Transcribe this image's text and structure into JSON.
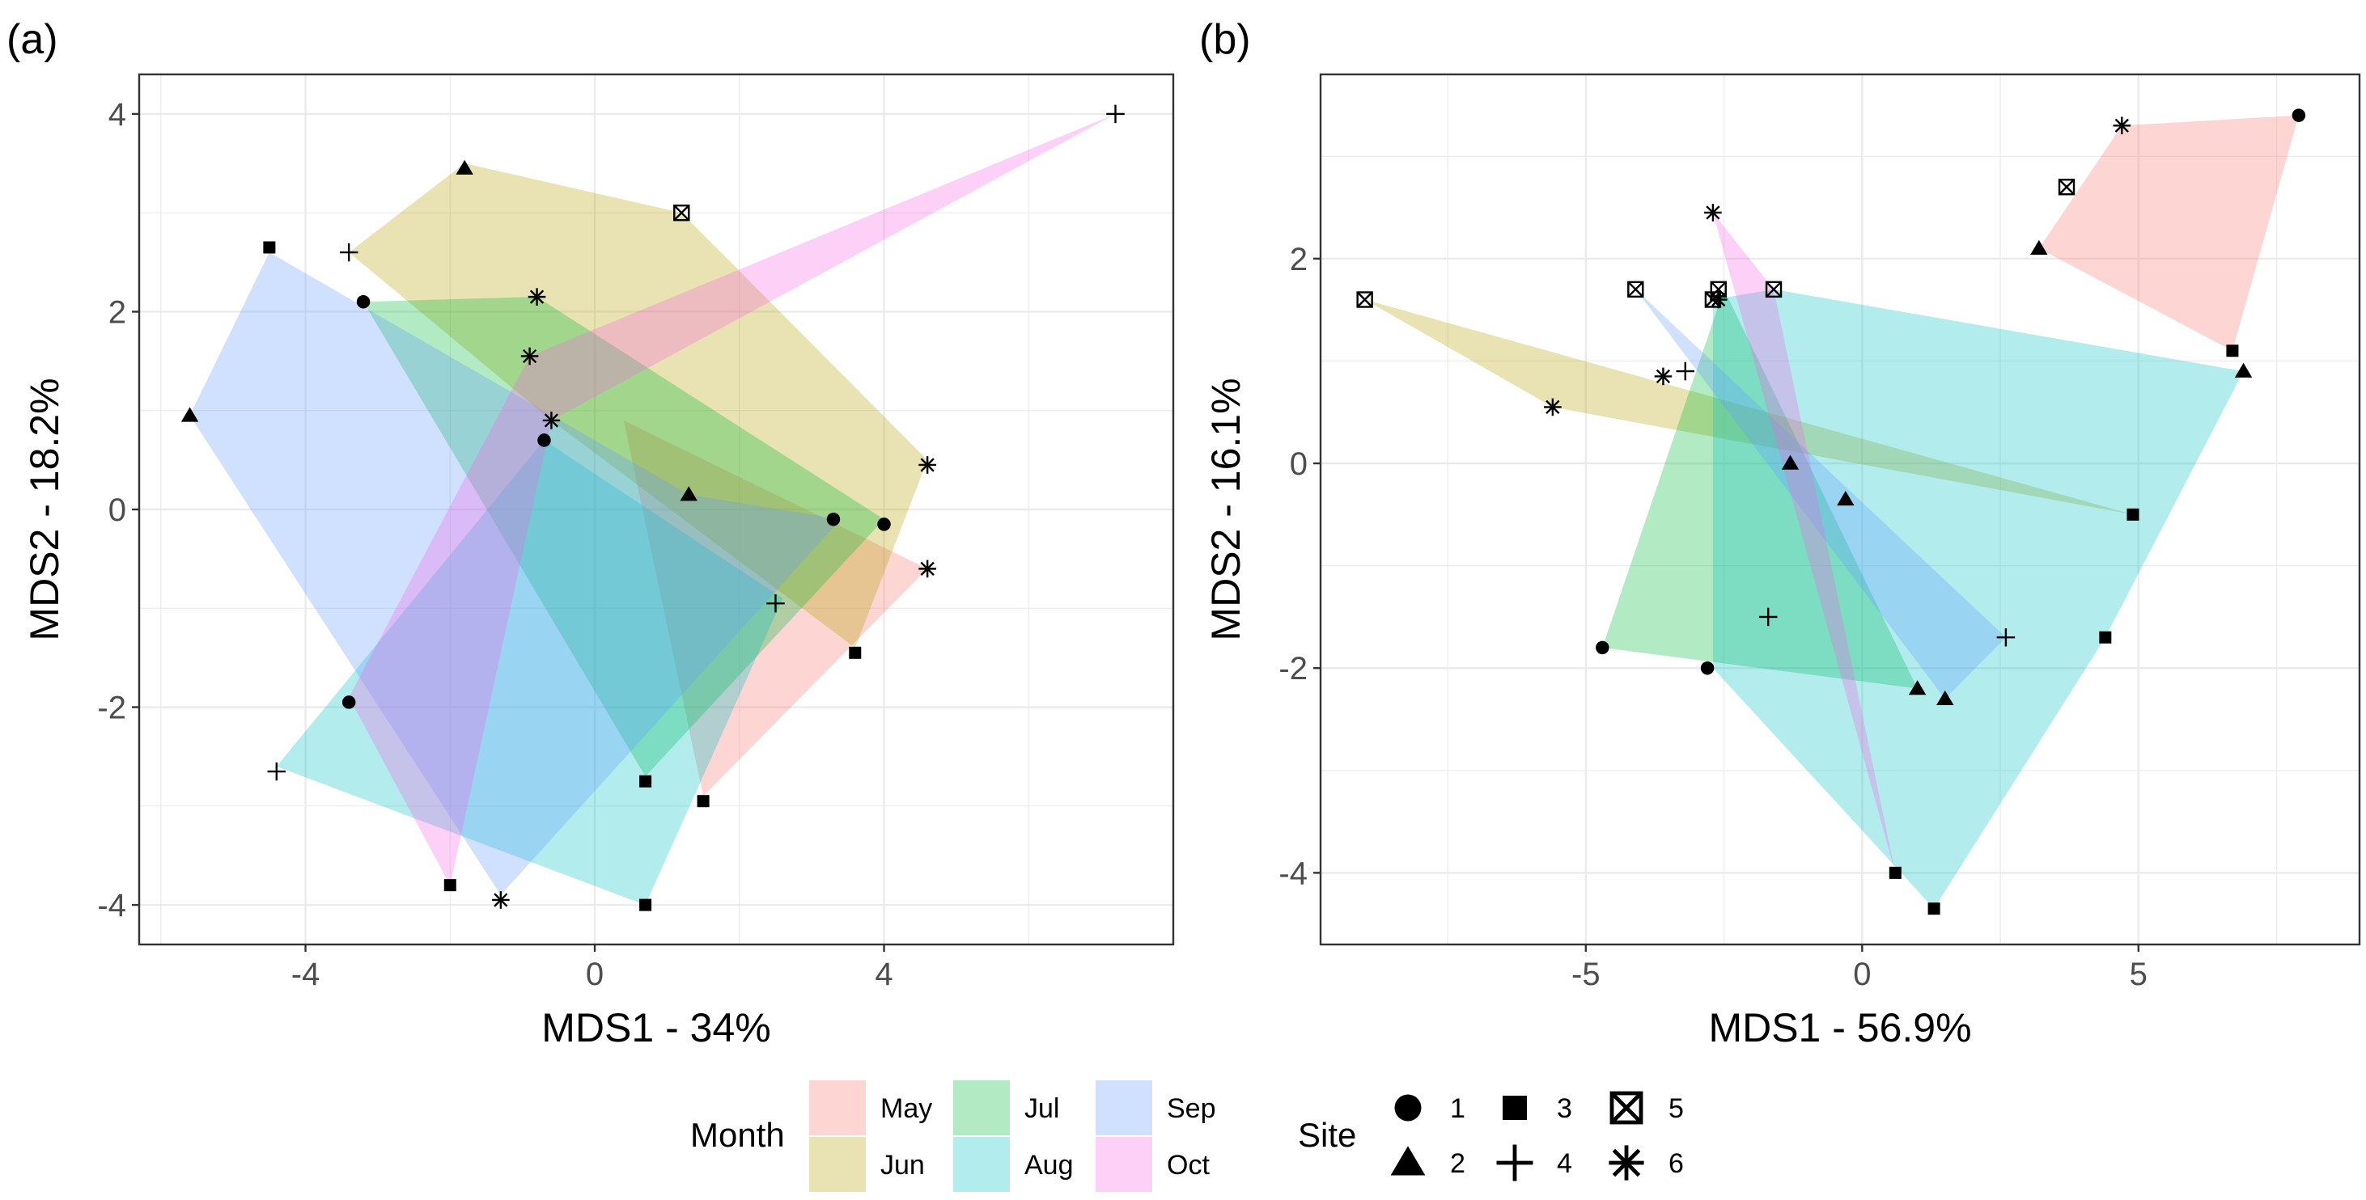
{
  "chart_data": [
    {
      "type": "scatter",
      "panel_label": "(a)",
      "xlabel": "MDS1 - 34%",
      "ylabel": "MDS2 - 18.2%",
      "xlim": [
        -6.3,
        8.0
      ],
      "ylim": [
        -4.4,
        4.4
      ],
      "xticks": [
        -4,
        0,
        4
      ],
      "yticks": [
        -4,
        -2,
        0,
        2,
        4
      ],
      "xtick_labels": [
        "-4",
        "0",
        "4"
      ],
      "ytick_labels": [
        "-4",
        "-2",
        "0",
        "2",
        "4"
      ],
      "grid": true,
      "hulls": [
        {
          "month": "May",
          "points": [
            [
              0.4,
              0.9
            ],
            [
              4.6,
              -0.6
            ],
            [
              1.5,
              -2.9
            ]
          ]
        },
        {
          "month": "Jun",
          "points": [
            [
              -3.4,
              2.6
            ],
            [
              -1.8,
              3.5
            ],
            [
              1.2,
              3.0
            ],
            [
              4.6,
              0.5
            ],
            [
              3.6,
              -1.4
            ],
            [
              -0.6,
              0.9
            ]
          ]
        },
        {
          "month": "Jul",
          "points": [
            [
              -3.2,
              2.1
            ],
            [
              -0.8,
              2.15
            ],
            [
              4.0,
              -0.1
            ],
            [
              0.7,
              -2.7
            ]
          ]
        },
        {
          "month": "Aug",
          "points": [
            [
              -0.7,
              0.7
            ],
            [
              2.6,
              -0.9
            ],
            [
              0.7,
              -4.0
            ],
            [
              -4.4,
              -2.6
            ]
          ]
        },
        {
          "month": "Sep",
          "points": [
            [
              -4.5,
              2.6
            ],
            [
              1.3,
              0.15
            ],
            [
              3.4,
              -0.1
            ],
            [
              -1.3,
              -3.9
            ],
            [
              -5.6,
              0.95
            ]
          ]
        },
        {
          "month": "Oct",
          "points": [
            [
              7.2,
              4.0
            ],
            [
              -0.6,
              0.9
            ],
            [
              -2.0,
              -3.8
            ],
            [
              -3.4,
              -1.9
            ],
            [
              -0.9,
              1.55
            ]
          ]
        }
      ],
      "points": [
        {
          "site": "4",
          "x": 7.2,
          "y": 4.0
        },
        {
          "site": "2",
          "x": -1.8,
          "y": 3.45
        },
        {
          "site": "5",
          "x": 1.2,
          "y": 3.0
        },
        {
          "site": "3",
          "x": -4.5,
          "y": 2.65
        },
        {
          "site": "4",
          "x": -3.4,
          "y": 2.6
        },
        {
          "site": "6",
          "x": -0.8,
          "y": 2.15
        },
        {
          "site": "1",
          "x": -3.2,
          "y": 2.1
        },
        {
          "site": "6",
          "x": -0.9,
          "y": 1.55
        },
        {
          "site": "2",
          "x": -5.6,
          "y": 0.95
        },
        {
          "site": "6",
          "x": -0.6,
          "y": 0.9
        },
        {
          "site": "1",
          "x": -0.7,
          "y": 0.7
        },
        {
          "site": "6",
          "x": 4.6,
          "y": 0.45
        },
        {
          "site": "2",
          "x": 1.3,
          "y": 0.15
        },
        {
          "site": "1",
          "x": 3.3,
          "y": -0.1
        },
        {
          "site": "1",
          "x": 4.0,
          "y": -0.15
        },
        {
          "site": "6",
          "x": 4.6,
          "y": -0.6
        },
        {
          "site": "4",
          "x": 2.5,
          "y": -0.95
        },
        {
          "site": "3",
          "x": 3.6,
          "y": -1.45
        },
        {
          "site": "1",
          "x": -3.4,
          "y": -1.95
        },
        {
          "site": "4",
          "x": -4.4,
          "y": -2.65
        },
        {
          "site": "3",
          "x": 0.7,
          "y": -2.75
        },
        {
          "site": "3",
          "x": 1.5,
          "y": -2.95
        },
        {
          "site": "3",
          "x": -2.0,
          "y": -3.8
        },
        {
          "site": "6",
          "x": -1.3,
          "y": -3.95
        },
        {
          "site": "3",
          "x": 0.7,
          "y": -4.0
        }
      ]
    },
    {
      "type": "scatter",
      "panel_label": "(b)",
      "xlabel": "MDS1 - 56.9%",
      "ylabel": "MDS2 - 16.1%",
      "xlim": [
        -9.8,
        9.0
      ],
      "ylim": [
        -4.7,
        3.8
      ],
      "xticks": [
        -5,
        0,
        5
      ],
      "yticks": [
        -4,
        -2,
        0,
        2
      ],
      "xtick_labels": [
        "-5",
        "0",
        "5"
      ],
      "ytick_labels": [
        "-4",
        "-2",
        "0",
        "2"
      ],
      "grid": true,
      "hulls": [
        {
          "month": "May",
          "points": [
            [
              3.2,
              2.1
            ],
            [
              4.7,
              3.3
            ],
            [
              7.9,
              3.4
            ],
            [
              6.7,
              1.1
            ]
          ]
        },
        {
          "month": "Jun",
          "points": [
            [
              -9.0,
              1.6
            ],
            [
              4.9,
              -0.5
            ],
            [
              -5.6,
              0.55
            ]
          ]
        },
        {
          "month": "Jul",
          "points": [
            [
              -2.5,
              1.7
            ],
            [
              1.0,
              -2.2
            ],
            [
              -4.7,
              -1.8
            ]
          ]
        },
        {
          "month": "Aug",
          "points": [
            [
              -1.6,
              1.7
            ],
            [
              6.9,
              0.9
            ],
            [
              4.4,
              -1.7
            ],
            [
              1.3,
              -4.35
            ],
            [
              -2.7,
              -2.0
            ],
            [
              -2.7,
              1.6
            ]
          ]
        },
        {
          "month": "Sep",
          "points": [
            [
              -4.1,
              1.7
            ],
            [
              2.6,
              -1.7
            ],
            [
              1.5,
              -2.3
            ]
          ]
        },
        {
          "month": "Oct",
          "points": [
            [
              -2.7,
              2.45
            ],
            [
              -1.6,
              1.7
            ],
            [
              0.6,
              -4.0
            ]
          ]
        }
      ],
      "points": [
        {
          "site": "1",
          "x": 7.9,
          "y": 3.4
        },
        {
          "site": "6",
          "x": 4.7,
          "y": 3.3
        },
        {
          "site": "5",
          "x": 3.7,
          "y": 2.7
        },
        {
          "site": "6",
          "x": -2.7,
          "y": 2.45
        },
        {
          "site": "2",
          "x": 3.2,
          "y": 2.1
        },
        {
          "site": "5",
          "x": -4.1,
          "y": 1.7
        },
        {
          "site": "5",
          "x": -2.6,
          "y": 1.7
        },
        {
          "site": "5",
          "x": -1.6,
          "y": 1.7
        },
        {
          "site": "5",
          "x": -9.0,
          "y": 1.6
        },
        {
          "site": "5",
          "x": -2.7,
          "y": 1.6
        },
        {
          "site": "6",
          "x": -2.6,
          "y": 1.6
        },
        {
          "site": "3",
          "x": 6.7,
          "y": 1.1
        },
        {
          "site": "4",
          "x": -3.2,
          "y": 0.9
        },
        {
          "site": "2",
          "x": 6.9,
          "y": 0.9
        },
        {
          "site": "6",
          "x": -3.6,
          "y": 0.85
        },
        {
          "site": "6",
          "x": -5.6,
          "y": 0.55
        },
        {
          "site": "2",
          "x": -1.3,
          "y": 0.0
        },
        {
          "site": "2",
          "x": -0.3,
          "y": -0.35
        },
        {
          "site": "3",
          "x": 4.9,
          "y": -0.5
        },
        {
          "site": "4",
          "x": -1.7,
          "y": -1.5
        },
        {
          "site": "4",
          "x": 2.6,
          "y": -1.7
        },
        {
          "site": "3",
          "x": 4.4,
          "y": -1.7
        },
        {
          "site": "1",
          "x": -4.7,
          "y": -1.8
        },
        {
          "site": "1",
          "x": -2.8,
          "y": -2.0
        },
        {
          "site": "2",
          "x": 1.0,
          "y": -2.2
        },
        {
          "site": "2",
          "x": 1.5,
          "y": -2.3
        },
        {
          "site": "3",
          "x": 0.6,
          "y": -4.0
        },
        {
          "site": "3",
          "x": 1.3,
          "y": -4.35
        }
      ]
    }
  ],
  "legend": {
    "month_title": "Month",
    "months": [
      {
        "label": "May",
        "color": "#F8766D"
      },
      {
        "label": "Jun",
        "color": "#B79F00"
      },
      {
        "label": "Jul",
        "color": "#00BA38"
      },
      {
        "label": "Aug",
        "color": "#00BFC4"
      },
      {
        "label": "Sep",
        "color": "#619CFF"
      },
      {
        "label": "Oct",
        "color": "#F564E3"
      }
    ],
    "site_title": "Site",
    "sites": [
      "1",
      "2",
      "3",
      "4",
      "5",
      "6"
    ]
  }
}
